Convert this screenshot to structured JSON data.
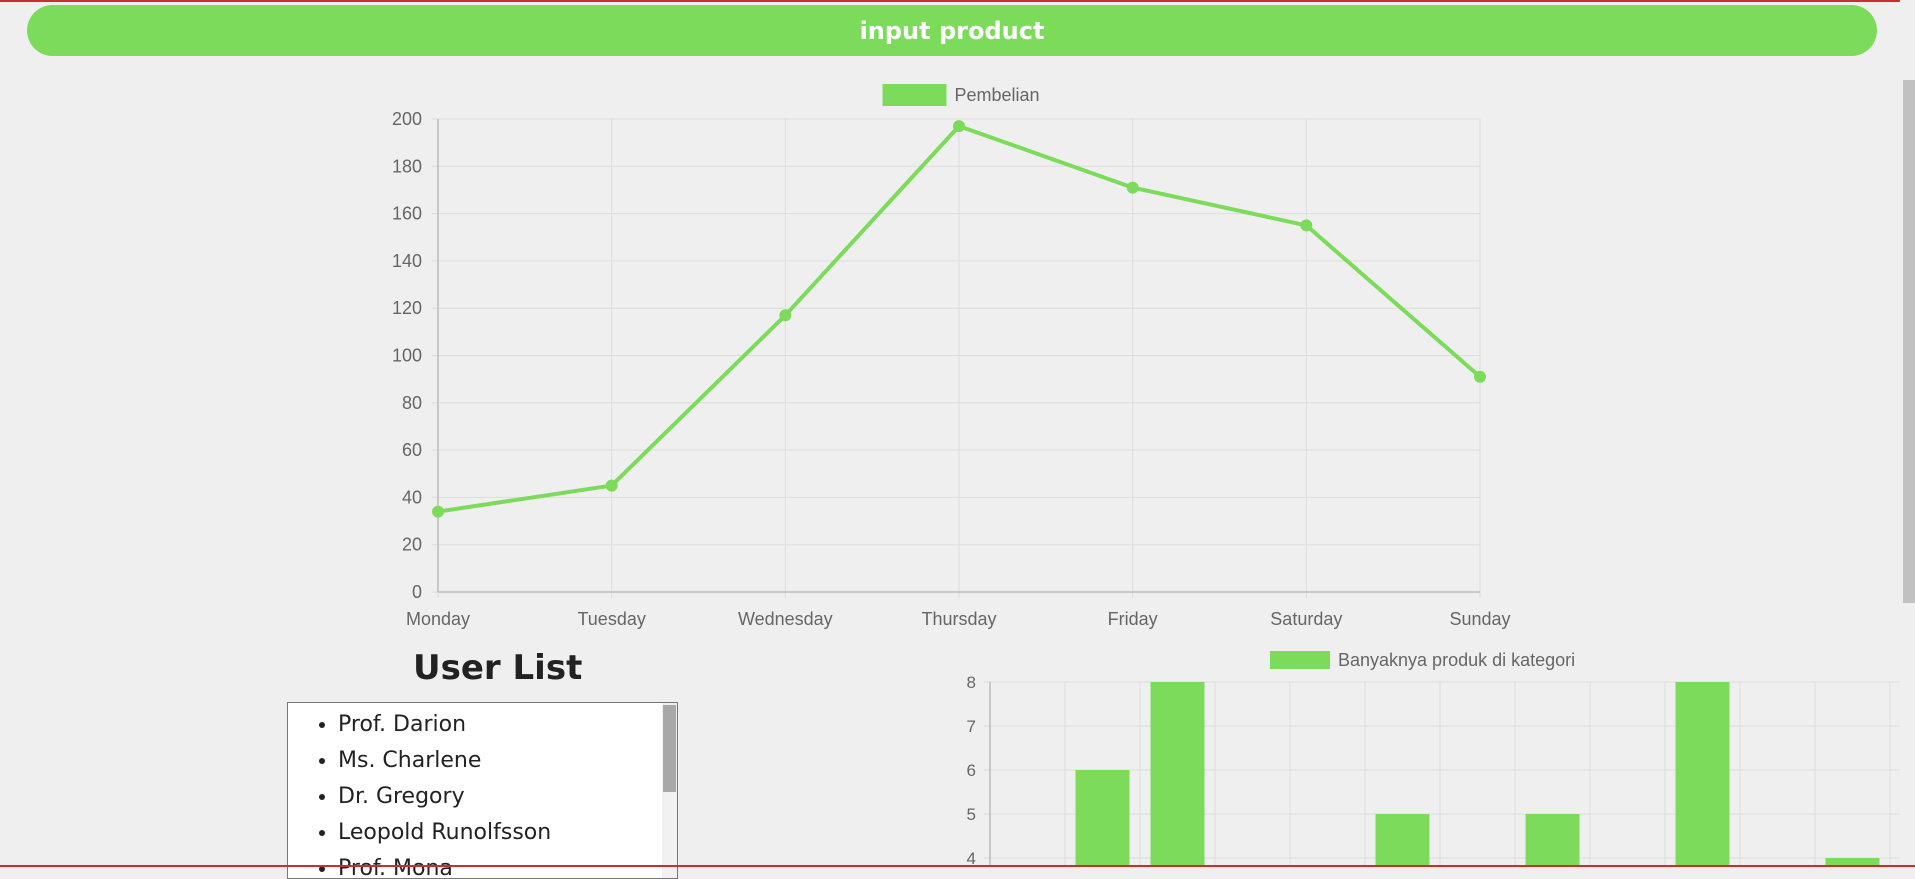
{
  "header": {
    "button_label": "input product"
  },
  "colors": {
    "accent": "#7ddb5b",
    "grid": "#dddddd",
    "axis_text": "#666666"
  },
  "user_list": {
    "title": "User List",
    "users": [
      "Prof. Darion",
      "Ms. Charlene",
      "Dr. Gregory",
      "Leopold Runolfsson",
      "Prof. Mona"
    ]
  },
  "chart_data": [
    {
      "type": "line",
      "legend": "Pembelian",
      "categories": [
        "Monday",
        "Tuesday",
        "Wednesday",
        "Thursday",
        "Friday",
        "Saturday",
        "Sunday"
      ],
      "values": [
        34,
        45,
        117,
        197,
        171,
        155,
        91
      ],
      "ylim": [
        0,
        200
      ],
      "yticks": [
        0,
        20,
        40,
        60,
        80,
        100,
        120,
        140,
        160,
        180,
        200
      ],
      "grid": true,
      "legend_position": "top"
    },
    {
      "type": "bar",
      "legend": "Banyaknya produk di kategori",
      "values": [
        null,
        6,
        8,
        null,
        null,
        5,
        null,
        5,
        null,
        8,
        null,
        4
      ],
      "ylim": [
        4,
        8
      ],
      "yticks": [
        4,
        5,
        6,
        7,
        8
      ],
      "grid": true,
      "legend_position": "top"
    }
  ]
}
